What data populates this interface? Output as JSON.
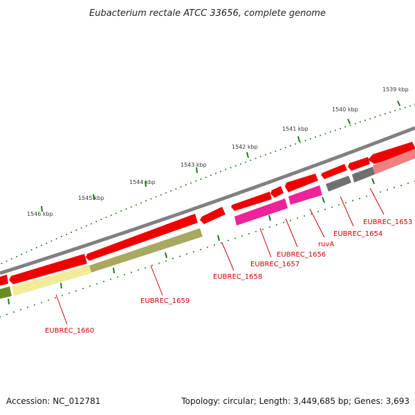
{
  "title": "Eubacterium rectale ATCC 33656, complete genome",
  "footer": {
    "accession": "Accession: NC_012781",
    "summary": "Topology: circular; Length: 3,449,685 bp; Genes: 3,693"
  },
  "colors": {
    "backbone": "#808080",
    "gene_forward": "#ee0000",
    "gene_highlight": "#ff69b4",
    "label": "#cc0000",
    "tick": "#1a7a1a",
    "rna_gray": "#707070",
    "feature_olive": "#a8a860",
    "feature_yellow": "#f2eb9a",
    "feature_pink": "#ee2299"
  },
  "scale_labels": [
    "1539 kbp",
    "1540 kbp",
    "1541 kbp",
    "1542 kbp",
    "1543 kbp",
    "1544 kbp",
    "1545 kbp",
    "1546 kbp"
  ],
  "gene_labels": [
    "EUBREC_1653",
    "EUBREC_1654",
    "ruvA",
    "EUBREC_1656",
    "EUBREC_1657",
    "EUBREC_1658",
    "EUBREC_1659",
    "EUBREC_1660"
  ]
}
